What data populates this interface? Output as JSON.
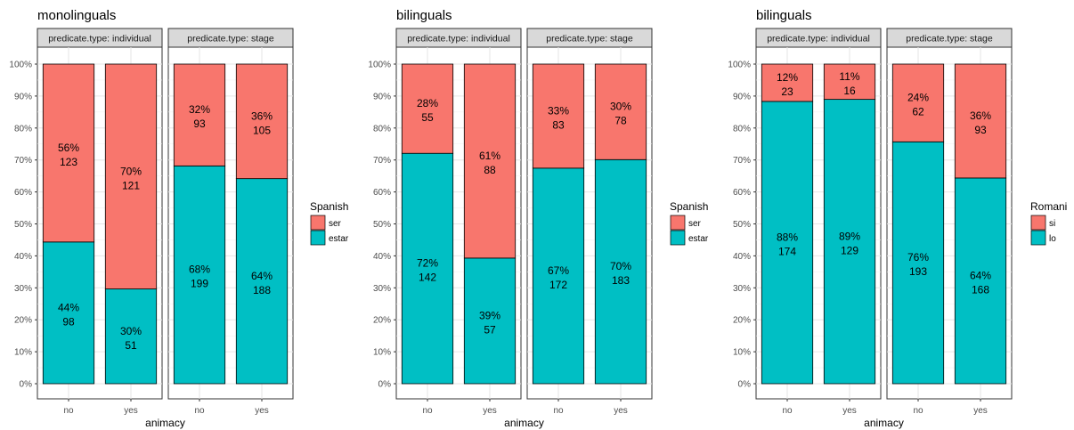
{
  "colors": {
    "top": "#F8766D",
    "bottom": "#00BFC4"
  },
  "chart_data": [
    {
      "type": "bar",
      "stacked": true,
      "percent": true,
      "title": "monolinguals",
      "xlabel": "animacy",
      "ylabel": "",
      "ylim": [
        0,
        100
      ],
      "yticks": [
        "0%",
        "10%",
        "20%",
        "30%",
        "40%",
        "50%",
        "60%",
        "70%",
        "80%",
        "90%",
        "100%"
      ],
      "legend_title": "Spanish",
      "series_names": [
        "ser",
        "estar"
      ],
      "facets": [
        {
          "label": "predicate.type: individual",
          "categories": [
            "no",
            "yes"
          ],
          "series": [
            {
              "name": "ser",
              "percent_labels": [
                "56%",
                "70%"
              ],
              "counts": [
                123,
                121
              ]
            },
            {
              "name": "estar",
              "percent_labels": [
                "44%",
                "30%"
              ],
              "counts": [
                98,
                51
              ]
            }
          ]
        },
        {
          "label": "predicate.type: stage",
          "categories": [
            "no",
            "yes"
          ],
          "series": [
            {
              "name": "ser",
              "percent_labels": [
                "32%",
                "36%"
              ],
              "counts": [
                93,
                105
              ]
            },
            {
              "name": "estar",
              "percent_labels": [
                "68%",
                "64%"
              ],
              "counts": [
                199,
                188
              ]
            }
          ]
        }
      ]
    },
    {
      "type": "bar",
      "stacked": true,
      "percent": true,
      "title": "bilinguals",
      "xlabel": "animacy",
      "ylabel": "",
      "ylim": [
        0,
        100
      ],
      "yticks": [
        "0%",
        "10%",
        "20%",
        "30%",
        "40%",
        "50%",
        "60%",
        "70%",
        "80%",
        "90%",
        "100%"
      ],
      "legend_title": "Spanish",
      "series_names": [
        "ser",
        "estar"
      ],
      "facets": [
        {
          "label": "predicate.type: individual",
          "categories": [
            "no",
            "yes"
          ],
          "series": [
            {
              "name": "ser",
              "percent_labels": [
                "28%",
                "61%"
              ],
              "counts": [
                55,
                88
              ]
            },
            {
              "name": "estar",
              "percent_labels": [
                "72%",
                "39%"
              ],
              "counts": [
                142,
                57
              ]
            }
          ]
        },
        {
          "label": "predicate.type: stage",
          "categories": [
            "no",
            "yes"
          ],
          "series": [
            {
              "name": "ser",
              "percent_labels": [
                "33%",
                "30%"
              ],
              "counts": [
                83,
                78
              ]
            },
            {
              "name": "estar",
              "percent_labels": [
                "67%",
                "70%"
              ],
              "counts": [
                172,
                183
              ]
            }
          ]
        }
      ]
    },
    {
      "type": "bar",
      "stacked": true,
      "percent": true,
      "title": "bilinguals",
      "xlabel": "animacy",
      "ylabel": "",
      "ylim": [
        0,
        100
      ],
      "yticks": [
        "0%",
        "10%",
        "20%",
        "30%",
        "40%",
        "50%",
        "60%",
        "70%",
        "80%",
        "90%",
        "100%"
      ],
      "legend_title": "Romani",
      "series_names": [
        "si",
        "lo"
      ],
      "facets": [
        {
          "label": "predicate.type: individual",
          "categories": [
            "no",
            "yes"
          ],
          "series": [
            {
              "name": "si",
              "percent_labels": [
                "12%",
                "11%"
              ],
              "counts": [
                23,
                16
              ]
            },
            {
              "name": "lo",
              "percent_labels": [
                "88%",
                "89%"
              ],
              "counts": [
                174,
                129
              ]
            }
          ]
        },
        {
          "label": "predicate.type: stage",
          "categories": [
            "no",
            "yes"
          ],
          "series": [
            {
              "name": "si",
              "percent_labels": [
                "24%",
                "36%"
              ],
              "counts": [
                62,
                93
              ]
            },
            {
              "name": "lo",
              "percent_labels": [
                "76%",
                "64%"
              ],
              "counts": [
                193,
                168
              ]
            }
          ]
        }
      ]
    }
  ]
}
